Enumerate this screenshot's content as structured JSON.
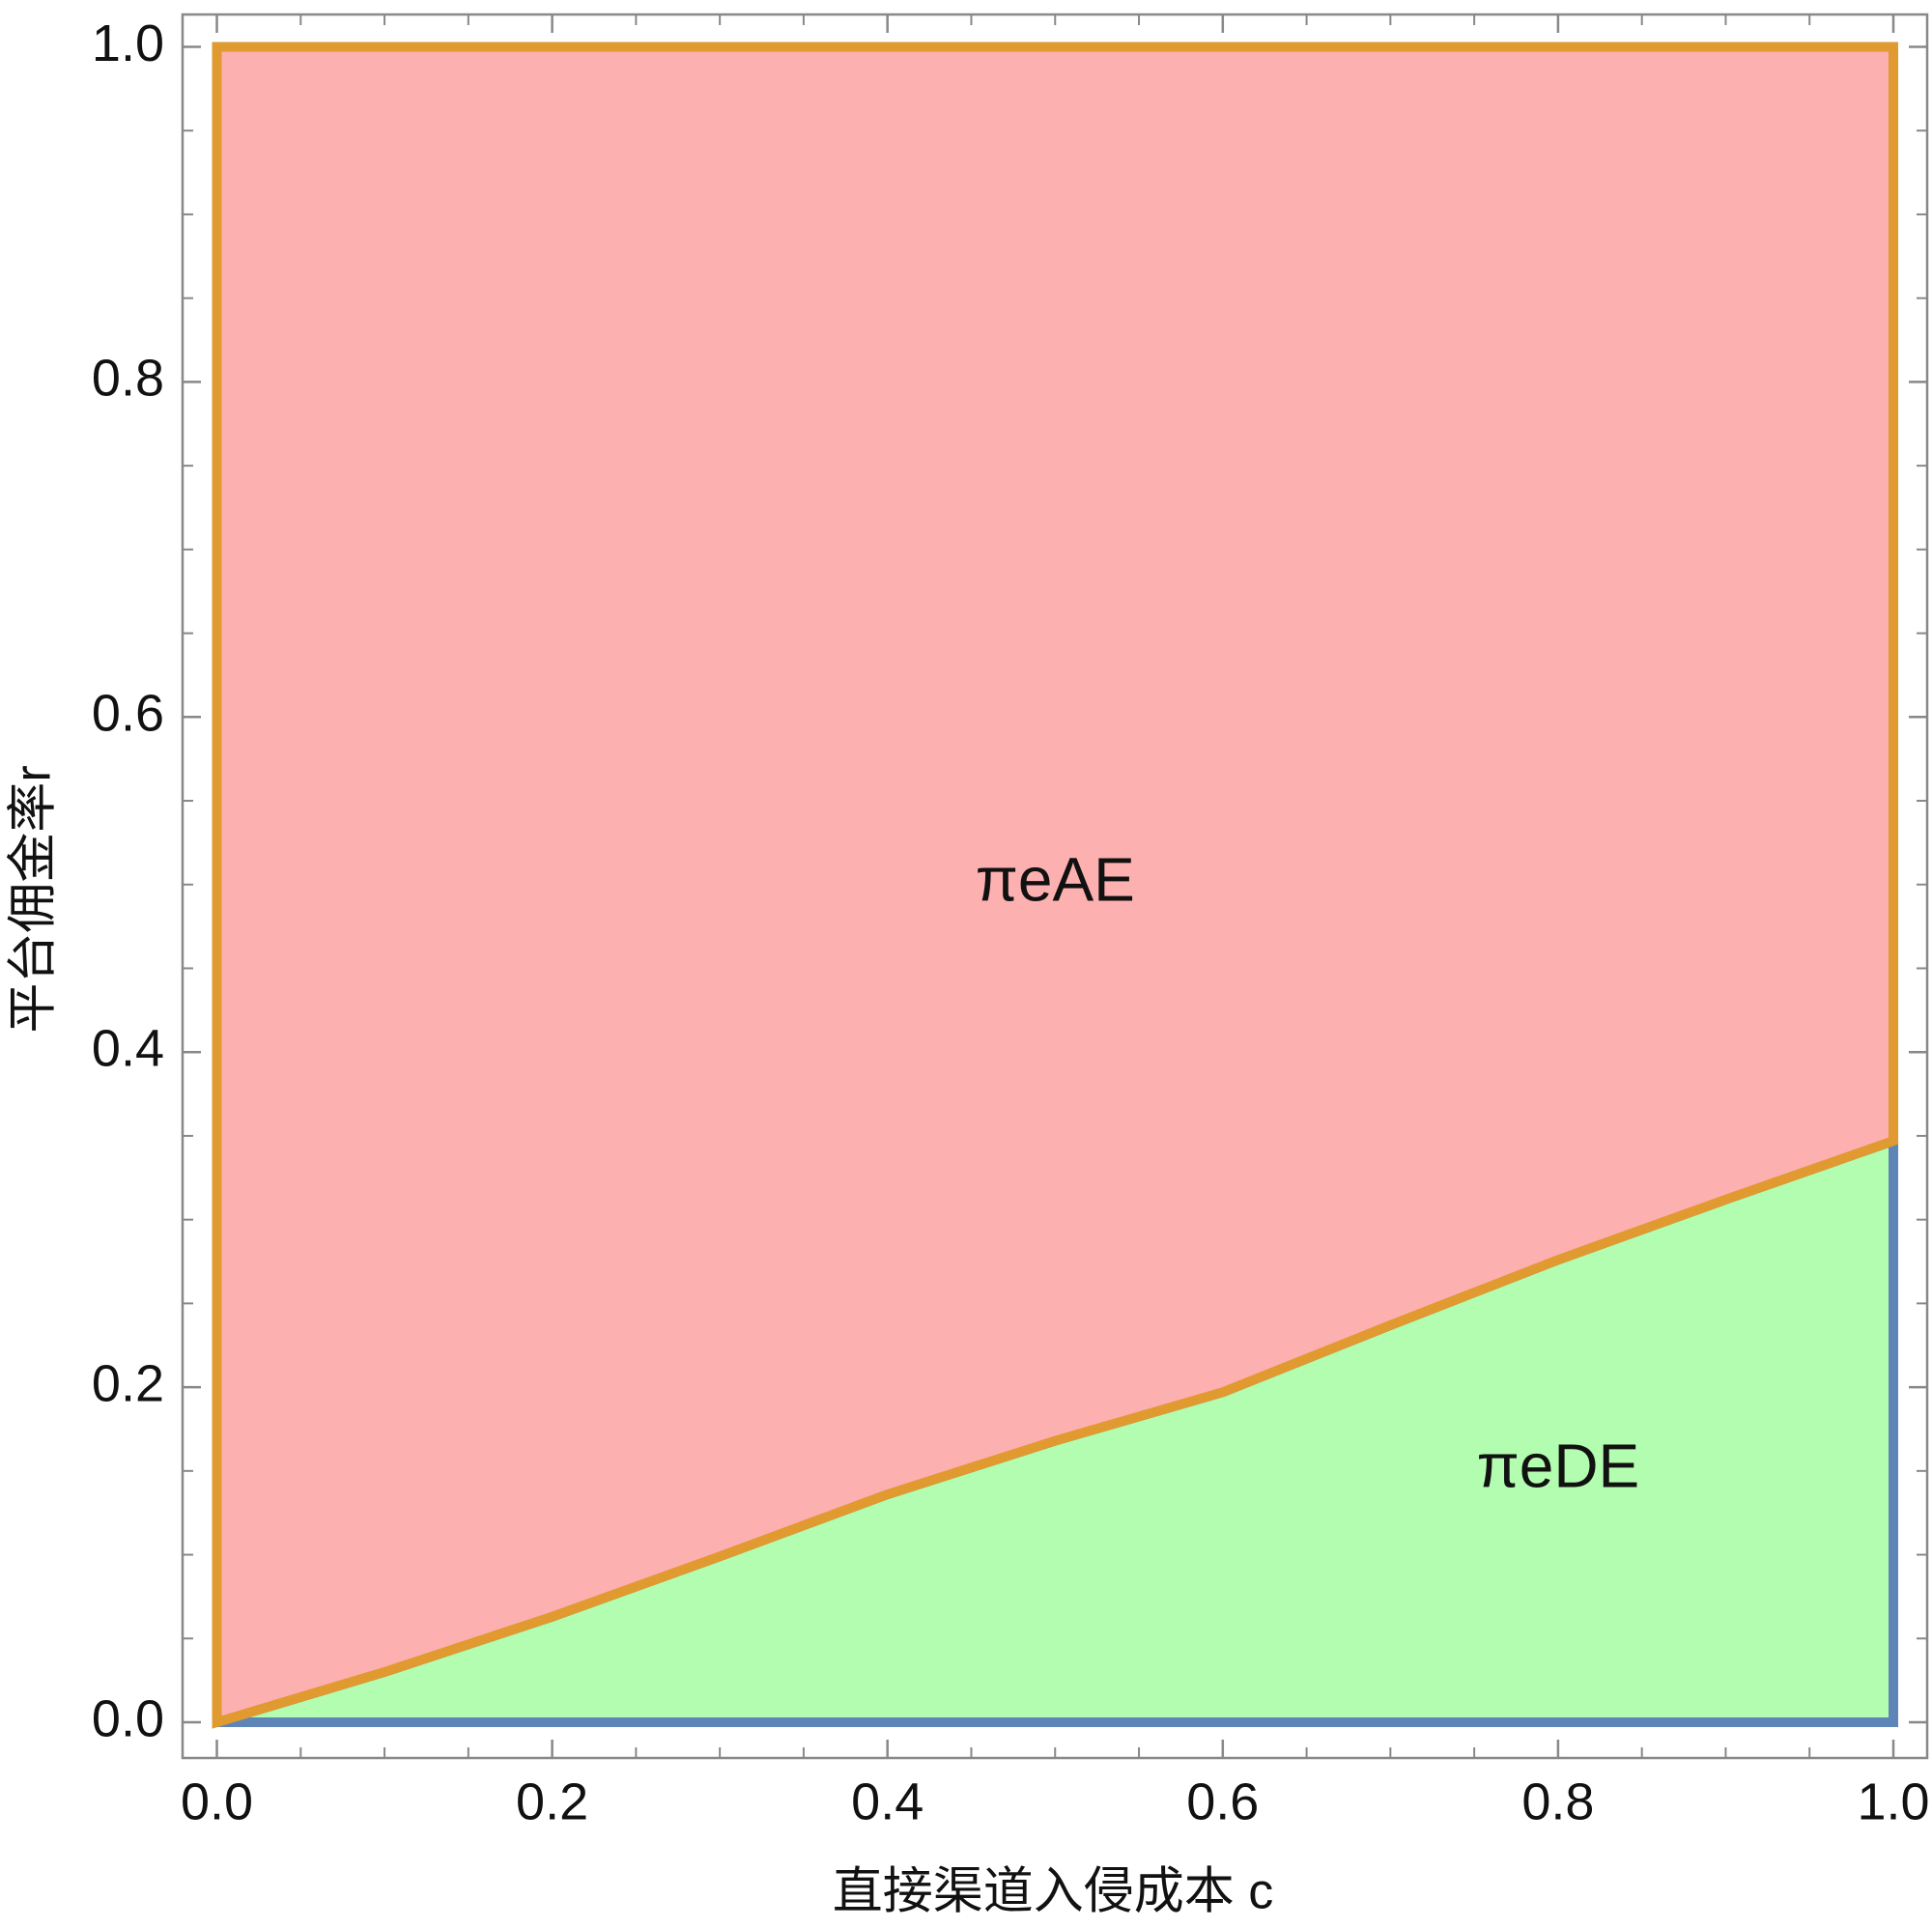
{
  "chart_data": {
    "type": "region",
    "xlabel": "直接渠道入侵成本 c",
    "ylabel": "平台佣金率r",
    "x": [
      0,
      0.1,
      0.2,
      0.3,
      0.4,
      0.5,
      0.6,
      0.7,
      0.8,
      0.9,
      1.0
    ],
    "boundary": [
      0,
      0.03,
      0.063,
      0.099,
      0.136,
      0.168,
      0.197,
      0.237,
      0.276,
      0.312,
      0.347
    ],
    "series": [
      {
        "name": "πeDE",
        "side": "below",
        "color": "#b3fdb0",
        "edge_color": "#5f85b8"
      },
      {
        "name": "πeAE",
        "side": "above",
        "color": "#fdb0b0",
        "edge_color": "#e09a30"
      }
    ],
    "xlim": [
      0,
      1.0
    ],
    "ylim": [
      0,
      1.0
    ],
    "xticks": [
      {
        "value": 0,
        "label": "0.0"
      },
      0.2,
      0.4,
      0.6,
      0.8,
      {
        "value": 1,
        "label": "1.0"
      }
    ],
    "yticks": [
      {
        "value": 0,
        "label": "0.0"
      },
      0.2,
      0.4,
      0.6,
      0.8,
      {
        "value": 1,
        "label": "1.0"
      }
    ],
    "xminorticks": [
      0.05,
      0.1,
      0.15,
      0.25,
      0.3,
      0.35,
      0.45,
      0.5,
      0.55,
      0.65,
      0.7,
      0.75,
      0.85,
      0.9,
      0.95
    ],
    "yminorticks": [
      0.05,
      0.1,
      0.15,
      0.25,
      0.3,
      0.35,
      0.45,
      0.5,
      0.55,
      0.65,
      0.7,
      0.75,
      0.85,
      0.9,
      0.95
    ],
    "grid": false
  }
}
